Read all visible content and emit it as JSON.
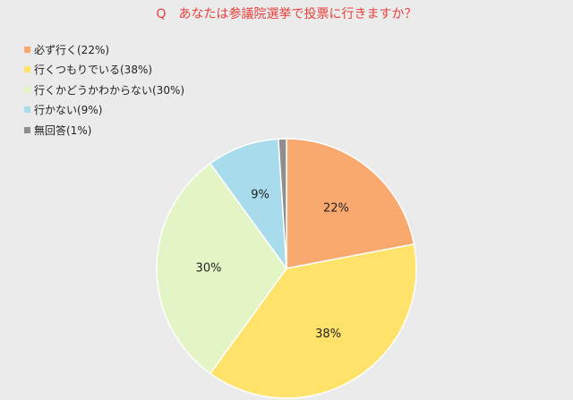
{
  "title": "Q　あなたは参議院選挙で投票に行きますか？",
  "chart_data": {
    "type": "pie",
    "categories": [
      "必ず行く",
      "行くつもりでいる",
      "行くかどうかわからない",
      "行かない",
      "無回答"
    ],
    "values": [
      22,
      38,
      30,
      9,
      1
    ],
    "value_labels": [
      "22%",
      "38%",
      "30%",
      "9%",
      ""
    ],
    "legend_labels": [
      "必ず行く(22%)",
      "行くつもりでいる(38%)",
      "行くかどうかわからない(30%)",
      "行かない(9%)",
      "無回答(1%)"
    ],
    "colors": [
      "#f9a96e",
      "#fee26a",
      "#e3f5c5",
      "#a8dcec",
      "#8e8e8e"
    ],
    "legend_position": "top-left",
    "start": "12 o'clock",
    "direction": "clockwise"
  }
}
